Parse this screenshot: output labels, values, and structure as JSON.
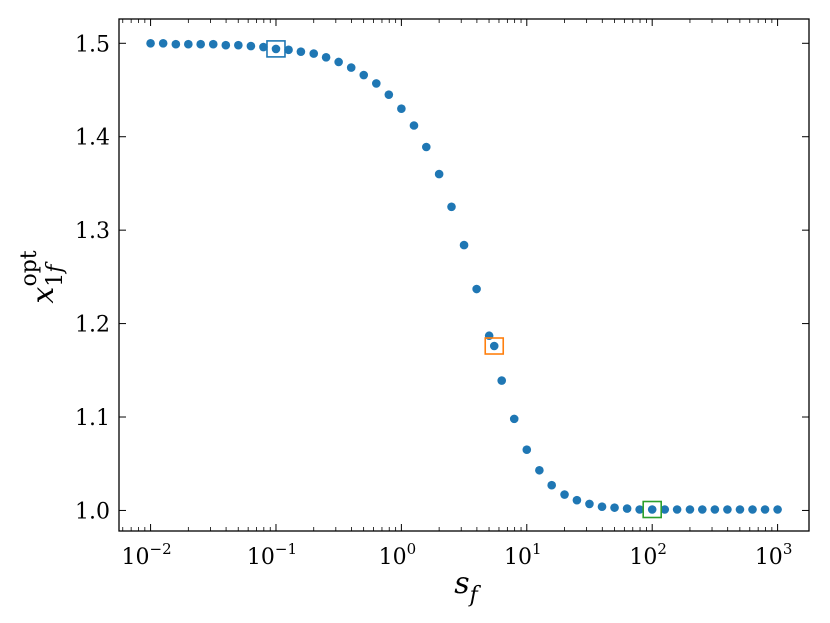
{
  "chart_data": {
    "type": "scatter",
    "title": "",
    "xlabel": "s_f",
    "ylabel": "x_1f^opt",
    "xscale": "log",
    "xlim": [
      0.0056,
      1780
    ],
    "ylim": [
      0.978,
      1.526
    ],
    "grid": false,
    "x_ticks": [
      {
        "value": 0.01,
        "base": "10",
        "exp": "−2"
      },
      {
        "value": 0.1,
        "base": "10",
        "exp": "−1"
      },
      {
        "value": 1,
        "base": "10",
        "exp": "0"
      },
      {
        "value": 10,
        "base": "10",
        "exp": "1"
      },
      {
        "value": 100,
        "base": "10",
        "exp": "2"
      },
      {
        "value": 1000,
        "base": "10",
        "exp": "3"
      }
    ],
    "y_ticks": [
      {
        "value": 1.0,
        "label": "1.0"
      },
      {
        "value": 1.1,
        "label": "1.1"
      },
      {
        "value": 1.2,
        "label": "1.2"
      },
      {
        "value": 1.3,
        "label": "1.3"
      },
      {
        "value": 1.4,
        "label": "1.4"
      },
      {
        "value": 1.5,
        "label": "1.5"
      }
    ],
    "series": [
      {
        "color": "#1f77b4",
        "points": [
          {
            "x": 0.01,
            "y": 1.5
          },
          {
            "x": 0.0126,
            "y": 1.5
          },
          {
            "x": 0.0159,
            "y": 1.499
          },
          {
            "x": 0.02,
            "y": 1.499
          },
          {
            "x": 0.0251,
            "y": 1.499
          },
          {
            "x": 0.0316,
            "y": 1.499
          },
          {
            "x": 0.0398,
            "y": 1.498
          },
          {
            "x": 0.0501,
            "y": 1.498
          },
          {
            "x": 0.0631,
            "y": 1.497
          },
          {
            "x": 0.0794,
            "y": 1.496
          },
          {
            "x": 0.1,
            "y": 1.494
          },
          {
            "x": 0.126,
            "y": 1.493
          },
          {
            "x": 0.158,
            "y": 1.491
          },
          {
            "x": 0.2,
            "y": 1.489
          },
          {
            "x": 0.251,
            "y": 1.485
          },
          {
            "x": 0.316,
            "y": 1.48
          },
          {
            "x": 0.398,
            "y": 1.474
          },
          {
            "x": 0.501,
            "y": 1.466
          },
          {
            "x": 0.631,
            "y": 1.457
          },
          {
            "x": 0.794,
            "y": 1.445
          },
          {
            "x": 1.0,
            "y": 1.43
          },
          {
            "x": 1.26,
            "y": 1.412
          },
          {
            "x": 1.58,
            "y": 1.389
          },
          {
            "x": 2.0,
            "y": 1.36
          },
          {
            "x": 2.51,
            "y": 1.325
          },
          {
            "x": 3.16,
            "y": 1.284
          },
          {
            "x": 3.98,
            "y": 1.237
          },
          {
            "x": 5.01,
            "y": 1.187
          },
          {
            "x": 5.5,
            "y": 1.176
          },
          {
            "x": 6.31,
            "y": 1.139
          },
          {
            "x": 7.94,
            "y": 1.098
          },
          {
            "x": 10.0,
            "y": 1.065
          },
          {
            "x": 12.6,
            "y": 1.043
          },
          {
            "x": 15.8,
            "y": 1.027
          },
          {
            "x": 20.0,
            "y": 1.017
          },
          {
            "x": 25.1,
            "y": 1.011
          },
          {
            "x": 31.6,
            "y": 1.007
          },
          {
            "x": 39.8,
            "y": 1.004
          },
          {
            "x": 50.1,
            "y": 1.003
          },
          {
            "x": 63.1,
            "y": 1.002
          },
          {
            "x": 79.4,
            "y": 1.001
          },
          {
            "x": 100,
            "y": 1.001
          },
          {
            "x": 126,
            "y": 1.001
          },
          {
            "x": 158,
            "y": 1.001
          },
          {
            "x": 200,
            "y": 1.001
          },
          {
            "x": 251,
            "y": 1.001
          },
          {
            "x": 316,
            "y": 1.001
          },
          {
            "x": 398,
            "y": 1.001
          },
          {
            "x": 501,
            "y": 1.001
          },
          {
            "x": 631,
            "y": 1.001
          },
          {
            "x": 794,
            "y": 1.001
          },
          {
            "x": 1000,
            "y": 1.001
          }
        ]
      }
    ],
    "highlights": [
      {
        "x": 0.1,
        "y": 1.494,
        "color": "#1f77b4"
      },
      {
        "x": 5.5,
        "y": 1.176,
        "color": "#ff7f0e"
      },
      {
        "x": 100,
        "y": 1.001,
        "color": "#2ca02c"
      }
    ]
  }
}
